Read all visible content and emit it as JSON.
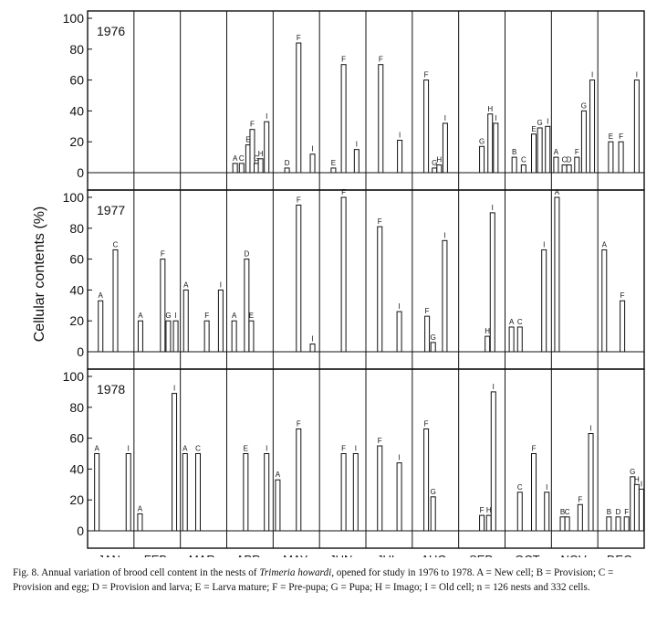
{
  "chart_data": {
    "type": "bar",
    "ylabel": "Cellular contents (%)",
    "ylim": [
      0,
      100
    ],
    "yticks": [
      0,
      20,
      40,
      60,
      80,
      100
    ],
    "months": [
      "JAN.",
      "FEB.",
      "MAR.",
      "APR.",
      "MAY.",
      "JUN.",
      "JUL.",
      "AUG.",
      "SEP.",
      "OCT.",
      "NOV.",
      "DEC."
    ],
    "panels": [
      {
        "year": "1976",
        "bars": [
          {
            "month": 3,
            "pos": 0.18,
            "label": "A",
            "value": 6
          },
          {
            "month": 3,
            "pos": 0.32,
            "label": "C",
            "value": 6
          },
          {
            "month": 3,
            "pos": 0.46,
            "label": "E",
            "value": 18
          },
          {
            "month": 3,
            "pos": 0.55,
            "label": "F",
            "value": 28
          },
          {
            "month": 3,
            "pos": 0.64,
            "label": "G",
            "value": 6
          },
          {
            "month": 3,
            "pos": 0.73,
            "label": "H",
            "value": 9
          },
          {
            "month": 3,
            "pos": 0.86,
            "label": "I",
            "value": 33
          },
          {
            "month": 4,
            "pos": 0.3,
            "label": "D",
            "value": 3
          },
          {
            "month": 4,
            "pos": 0.55,
            "label": "F",
            "value": 84
          },
          {
            "month": 4,
            "pos": 0.85,
            "label": "I",
            "value": 12
          },
          {
            "month": 5,
            "pos": 0.3,
            "label": "E",
            "value": 3
          },
          {
            "month": 5,
            "pos": 0.52,
            "label": "F",
            "value": 70
          },
          {
            "month": 5,
            "pos": 0.8,
            "label": "I",
            "value": 15
          },
          {
            "month": 6,
            "pos": 0.32,
            "label": "F",
            "value": 70
          },
          {
            "month": 6,
            "pos": 0.73,
            "label": "I",
            "value": 21
          },
          {
            "month": 7,
            "pos": 0.3,
            "label": "F",
            "value": 60
          },
          {
            "month": 7,
            "pos": 0.48,
            "label": "G",
            "value": 3
          },
          {
            "month": 7,
            "pos": 0.58,
            "label": "H",
            "value": 5
          },
          {
            "month": 7,
            "pos": 0.71,
            "label": "I",
            "value": 32
          },
          {
            "month": 8,
            "pos": 0.5,
            "label": "G",
            "value": 17
          },
          {
            "month": 8,
            "pos": 0.68,
            "label": "H",
            "value": 38
          },
          {
            "month": 8,
            "pos": 0.8,
            "label": "I",
            "value": 32
          },
          {
            "month": 9,
            "pos": 0.2,
            "label": "B",
            "value": 10
          },
          {
            "month": 9,
            "pos": 0.4,
            "label": "C",
            "value": 5
          },
          {
            "month": 9,
            "pos": 0.62,
            "label": "E",
            "value": 25
          },
          {
            "month": 9,
            "pos": 0.75,
            "label": "G",
            "value": 29
          },
          {
            "month": 9,
            "pos": 0.92,
            "label": "I",
            "value": 30
          },
          {
            "month": 10,
            "pos": 0.1,
            "label": "A",
            "value": 10
          },
          {
            "month": 10,
            "pos": 0.28,
            "label": "C",
            "value": 5
          },
          {
            "month": 10,
            "pos": 0.38,
            "label": "D",
            "value": 5
          },
          {
            "month": 10,
            "pos": 0.55,
            "label": "F",
            "value": 10
          },
          {
            "month": 10,
            "pos": 0.7,
            "label": "G",
            "value": 40
          },
          {
            "month": 10,
            "pos": 0.88,
            "label": "I",
            "value": 60
          },
          {
            "month": 11,
            "pos": 0.28,
            "label": "E",
            "value": 20
          },
          {
            "month": 11,
            "pos": 0.5,
            "label": "F",
            "value": 20
          },
          {
            "month": 11,
            "pos": 0.84,
            "label": "I",
            "value": 60
          }
        ]
      },
      {
        "year": "1977",
        "bars": [
          {
            "month": 0,
            "pos": 0.28,
            "label": "A",
            "value": 33
          },
          {
            "month": 0,
            "pos": 0.6,
            "label": "C",
            "value": 66
          },
          {
            "month": 1,
            "pos": 0.14,
            "label": "A",
            "value": 20
          },
          {
            "month": 1,
            "pos": 0.62,
            "label": "F",
            "value": 60
          },
          {
            "month": 1,
            "pos": 0.74,
            "label": "G",
            "value": 20
          },
          {
            "month": 1,
            "pos": 0.9,
            "label": "I",
            "value": 20
          },
          {
            "month": 2,
            "pos": 0.12,
            "label": "A",
            "value": 40
          },
          {
            "month": 2,
            "pos": 0.57,
            "label": "F",
            "value": 20
          },
          {
            "month": 2,
            "pos": 0.87,
            "label": "I",
            "value": 40
          },
          {
            "month": 3,
            "pos": 0.16,
            "label": "A",
            "value": 20
          },
          {
            "month": 3,
            "pos": 0.43,
            "label": "D",
            "value": 60
          },
          {
            "month": 3,
            "pos": 0.53,
            "label": "E",
            "value": 20
          },
          {
            "month": 4,
            "pos": 0.55,
            "label": "F",
            "value": 95
          },
          {
            "month": 4,
            "pos": 0.85,
            "label": "I",
            "value": 5
          },
          {
            "month": 5,
            "pos": 0.52,
            "label": "F",
            "value": 100
          },
          {
            "month": 6,
            "pos": 0.3,
            "label": "F",
            "value": 81
          },
          {
            "month": 6,
            "pos": 0.72,
            "label": "I",
            "value": 26
          },
          {
            "month": 7,
            "pos": 0.32,
            "label": "F",
            "value": 23
          },
          {
            "month": 7,
            "pos": 0.45,
            "label": "G",
            "value": 6
          },
          {
            "month": 7,
            "pos": 0.7,
            "label": "I",
            "value": 72
          },
          {
            "month": 8,
            "pos": 0.62,
            "label": "H",
            "value": 10
          },
          {
            "month": 8,
            "pos": 0.73,
            "label": "I",
            "value": 90
          },
          {
            "month": 9,
            "pos": 0.14,
            "label": "A",
            "value": 16
          },
          {
            "month": 9,
            "pos": 0.32,
            "label": "C",
            "value": 16
          },
          {
            "month": 9,
            "pos": 0.84,
            "label": "I",
            "value": 66
          },
          {
            "month": 10,
            "pos": 0.12,
            "label": "A",
            "value": 100
          },
          {
            "month": 11,
            "pos": 0.14,
            "label": "A",
            "value": 66
          },
          {
            "month": 11,
            "pos": 0.53,
            "label": "F",
            "value": 33
          }
        ]
      },
      {
        "year": "1978",
        "bars": [
          {
            "month": 0,
            "pos": 0.2,
            "label": "A",
            "value": 50
          },
          {
            "month": 0,
            "pos": 0.88,
            "label": "I",
            "value": 50
          },
          {
            "month": 1,
            "pos": 0.13,
            "label": "A",
            "value": 11
          },
          {
            "month": 1,
            "pos": 0.87,
            "label": "I",
            "value": 89
          },
          {
            "month": 2,
            "pos": 0.1,
            "label": "A",
            "value": 50
          },
          {
            "month": 2,
            "pos": 0.38,
            "label": "C",
            "value": 50
          },
          {
            "month": 3,
            "pos": 0.41,
            "label": "E",
            "value": 50
          },
          {
            "month": 3,
            "pos": 0.86,
            "label": "I",
            "value": 50
          },
          {
            "month": 4,
            "pos": 0.1,
            "label": "A",
            "value": 33
          },
          {
            "month": 4,
            "pos": 0.55,
            "label": "F",
            "value": 66
          },
          {
            "month": 5,
            "pos": 0.52,
            "label": "F",
            "value": 50
          },
          {
            "month": 5,
            "pos": 0.78,
            "label": "I",
            "value": 50
          },
          {
            "month": 6,
            "pos": 0.3,
            "label": "F",
            "value": 55
          },
          {
            "month": 6,
            "pos": 0.72,
            "label": "I",
            "value": 44
          },
          {
            "month": 7,
            "pos": 0.3,
            "label": "F",
            "value": 66
          },
          {
            "month": 7,
            "pos": 0.45,
            "label": "G",
            "value": 22
          },
          {
            "month": 8,
            "pos": 0.5,
            "label": "F",
            "value": 10
          },
          {
            "month": 8,
            "pos": 0.65,
            "label": "H",
            "value": 10
          },
          {
            "month": 8,
            "pos": 0.75,
            "label": "I",
            "value": 90
          },
          {
            "month": 9,
            "pos": 0.32,
            "label": "C",
            "value": 25
          },
          {
            "month": 9,
            "pos": 0.62,
            "label": "F",
            "value": 50
          },
          {
            "month": 9,
            "pos": 0.9,
            "label": "I",
            "value": 25
          },
          {
            "month": 10,
            "pos": 0.24,
            "label": "B",
            "value": 9
          },
          {
            "month": 10,
            "pos": 0.34,
            "label": "C",
            "value": 9
          },
          {
            "month": 10,
            "pos": 0.62,
            "label": "F",
            "value": 17
          },
          {
            "month": 10,
            "pos": 0.85,
            "label": "I",
            "value": 63
          },
          {
            "month": 11,
            "pos": 0.24,
            "label": "B",
            "value": 9
          },
          {
            "month": 11,
            "pos": 0.44,
            "label": "D",
            "value": 9
          },
          {
            "month": 11,
            "pos": 0.62,
            "label": "F",
            "value": 9
          },
          {
            "month": 11,
            "pos": 0.75,
            "label": "G",
            "value": 35
          },
          {
            "month": 11,
            "pos": 0.84,
            "label": "H",
            "value": 30
          },
          {
            "month": 11,
            "pos": 0.94,
            "label": "I",
            "value": 27
          }
        ]
      }
    ]
  },
  "caption": {
    "part1": "Fig. 8. Annual variation of brood cell content in the nests of ",
    "species": "Trimeria howardi",
    "part2": ", opened for study in 1976 to 1978. A = New cell; B = Provision; C = Provision and egg; D = Provision and larva; E = Larva mature; F = Pre-pupa; G = Pupa; H = Imago; I = Old cell; n = 126 nests and 332 cells."
  }
}
